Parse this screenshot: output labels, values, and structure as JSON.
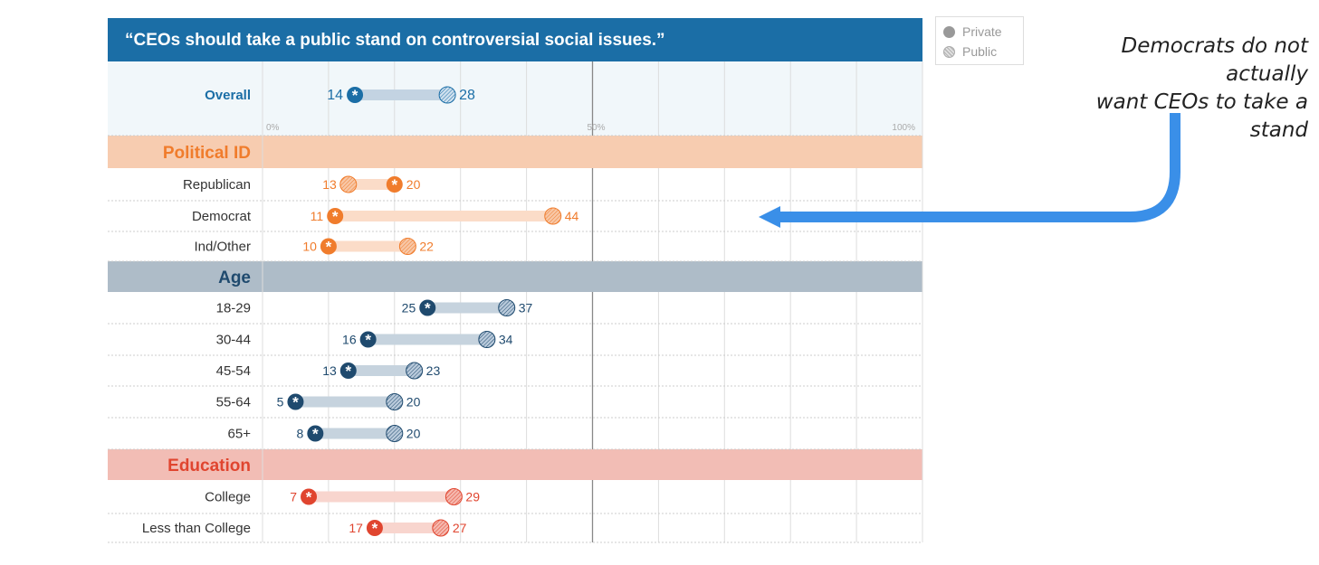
{
  "chart_data": {
    "type": "dumbbell",
    "title": "“CEOs should take a public stand on controversial social issues.”",
    "xlim": [
      0,
      100
    ],
    "x_ticks": [
      "0%",
      "50%",
      "100%"
    ],
    "legend": {
      "private": "Private",
      "public": "Public",
      "placement": "top-right"
    },
    "groups": [
      {
        "name": "",
        "rows": [
          {
            "label": "Overall",
            "private": 14,
            "public": 28
          }
        ]
      },
      {
        "name": "Political ID",
        "rows": [
          {
            "label": "Republican",
            "private": 20,
            "public": 13
          },
          {
            "label": "Democrat",
            "private": 11,
            "public": 44
          },
          {
            "label": "Ind/Other",
            "private": 10,
            "public": 22
          }
        ]
      },
      {
        "name": "Age",
        "rows": [
          {
            "label": "18-29",
            "private": 25,
            "public": 37
          },
          {
            "label": "30-44",
            "private": 16,
            "public": 34
          },
          {
            "label": "45-54",
            "private": 13,
            "public": 23
          },
          {
            "label": "55-64",
            "private": 5,
            "public": 20
          },
          {
            "label": "65+",
            "private": 8,
            "public": 20
          }
        ]
      },
      {
        "name": "Education",
        "rows": [
          {
            "label": "College",
            "private": 7,
            "public": 29
          },
          {
            "label": "Less than College",
            "private": 17,
            "public": 27
          }
        ]
      }
    ]
  },
  "annotation": {
    "line1": "Democrats do not actually",
    "line2": "want CEOs to take a stand"
  },
  "colors": {
    "title_bg": "#1b6ea6",
    "overall": "#1b6ea6",
    "political": "#f07c2c",
    "age": "#1f4a6e",
    "education": "#e0452f",
    "arrow": "#3a8fe8"
  }
}
